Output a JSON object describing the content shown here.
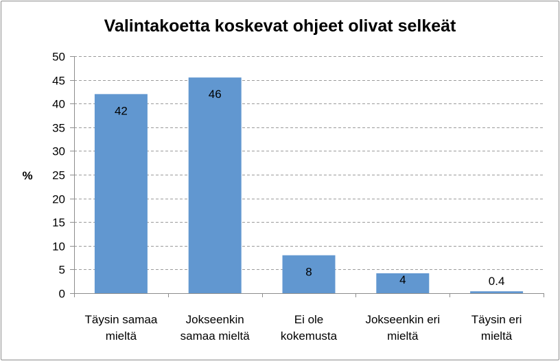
{
  "chart_data": {
    "type": "bar",
    "title": "Valintakoetta koskevat ohjeet olivat selkeät",
    "ylabel": "%",
    "xlabel": "",
    "ylim": [
      0,
      50
    ],
    "ytick_step": 5,
    "grid": true,
    "grid_style": "dashed",
    "bar_color": "#6197d0",
    "categories": [
      [
        "Täysin samaa",
        "mieltä"
      ],
      [
        "Jokseenkin",
        "samaa mieltä"
      ],
      [
        "Ei ole",
        "kokemusta"
      ],
      [
        "Jokseenkin eri",
        "mieltä"
      ],
      [
        "Täysin eri",
        "mieltä"
      ]
    ],
    "values": [
      42,
      45.5,
      8,
      4.2,
      0.4
    ],
    "data_labels": [
      "42",
      "46",
      "8",
      "4",
      "0.4"
    ]
  }
}
